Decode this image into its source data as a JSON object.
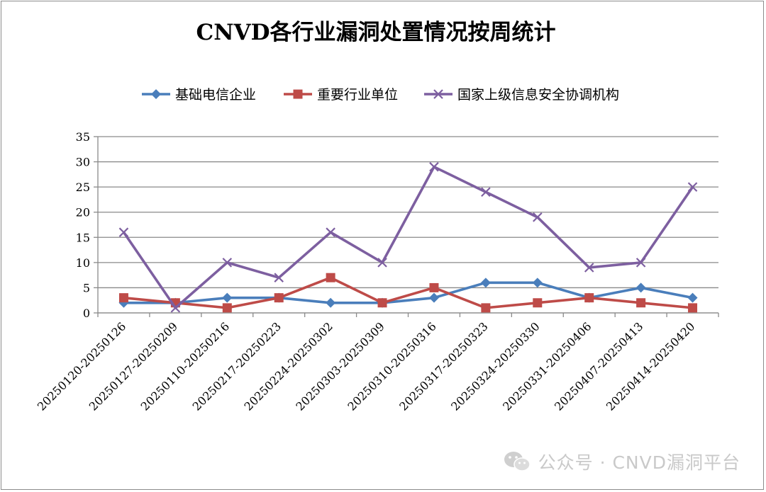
{
  "chart_data": {
    "type": "line",
    "title": "CNVD各行业漏洞处置情况按周统计",
    "categories": [
      "20250120-20250126",
      "20250127-20250209",
      "20250110-20250216",
      "20250217-20250223",
      "20250224-20250302",
      "20250303-20250309",
      "20250310-20250316",
      "20250317-20250323",
      "20250324-20250330",
      "20250331-20250406",
      "20250407-20250413",
      "20250414-20250420"
    ],
    "series": [
      {
        "name": "基础电信企业",
        "color": "#4a7ebb",
        "marker": "diamond",
        "values": [
          2,
          2,
          3,
          3,
          2,
          2,
          3,
          6,
          6,
          3,
          5,
          3
        ]
      },
      {
        "name": "重要行业单位",
        "color": "#be4b48",
        "marker": "square",
        "values": [
          3,
          2,
          1,
          3,
          7,
          2,
          5,
          1,
          2,
          3,
          2,
          1
        ]
      },
      {
        "name": "国家上级信息安全协调机构",
        "color": "#7d5fa0",
        "marker": "x",
        "values": [
          16,
          1,
          10,
          7,
          16,
          10,
          29,
          24,
          19,
          9,
          10,
          25
        ]
      }
    ],
    "ylim": [
      0,
      35
    ],
    "yticks": [
      0,
      5,
      10,
      15,
      20,
      25,
      30,
      35
    ],
    "xlabel": "",
    "ylabel": "",
    "grid": true,
    "legend_position": "top"
  },
  "watermark": {
    "text": "公众号 · CNVD漏洞平台",
    "icon": "wechat-icon"
  }
}
